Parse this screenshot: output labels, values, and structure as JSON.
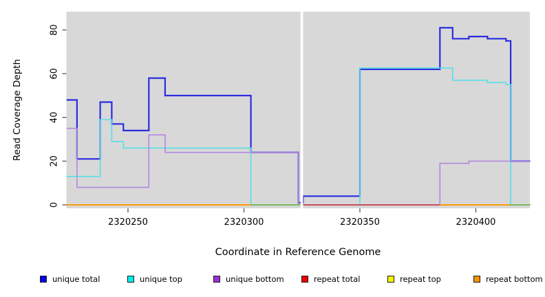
{
  "figure": {
    "xlabel": "Coordinate in Reference Genome",
    "ylabel": "Read Coverage Depth"
  },
  "chart_data": {
    "type": "line",
    "subtype": "step",
    "title": "",
    "xlabel": "Coordinate in Reference Genome",
    "ylabel": "Read Coverage Depth",
    "xlim": [
      2320223.5,
      2320423.5
    ],
    "ylim": [
      0,
      84
    ],
    "x_ticks": [
      2320250,
      2320300,
      2320350,
      2320400
    ],
    "y_ticks": [
      0,
      20,
      40,
      60,
      80
    ],
    "grid": false,
    "legend_position": "bottom",
    "plot_background": "#d8d8d8",
    "gap_region": {
      "from": 2320324.4,
      "to": 2320325.5,
      "color": "#ffffff"
    },
    "series": [
      {
        "name": "unique total",
        "color": "#2b2be0",
        "legend_color": "#0000ee",
        "width": 2.2,
        "steps": [
          [
            2320223.5,
            48
          ],
          [
            2320228,
            21
          ],
          [
            2320238,
            47
          ],
          [
            2320243,
            37
          ],
          [
            2320248,
            34
          ],
          [
            2320259,
            58
          ],
          [
            2320266,
            50
          ],
          [
            2320303,
            24
          ],
          [
            2320323.5,
            1
          ],
          [
            2320325.5,
            4
          ],
          [
            2320350,
            62
          ],
          [
            2320384.5,
            81
          ],
          [
            2320390,
            76
          ],
          [
            2320397,
            77
          ],
          [
            2320405,
            76
          ],
          [
            2320413,
            75
          ],
          [
            2320415,
            20
          ]
        ]
      },
      {
        "name": "unique top",
        "color": "#55dfe8",
        "legend_color": "#00eeee",
        "width": 1.6,
        "steps": [
          [
            2320223.5,
            13
          ],
          [
            2320238,
            39
          ],
          [
            2320243,
            29
          ],
          [
            2320248,
            26
          ],
          [
            2320303,
            0
          ],
          [
            2320350,
            62.6
          ],
          [
            2320390,
            57
          ],
          [
            2320405,
            56
          ],
          [
            2320413,
            55
          ],
          [
            2320415,
            0
          ]
        ]
      },
      {
        "name": "unique bottom",
        "color": "#b287de",
        "legend_color": "#9a30d8",
        "width": 1.6,
        "steps": [
          [
            2320223.5,
            35
          ],
          [
            2320228,
            8
          ],
          [
            2320259,
            32
          ],
          [
            2320266,
            24
          ],
          [
            2320323.5,
            0
          ],
          [
            2320384.5,
            19
          ],
          [
            2320397,
            20
          ]
        ]
      },
      {
        "name": "repeat total",
        "color": "#cc2222",
        "legend_color": "#ee0000",
        "width": 1.6,
        "steps": [
          [
            2320223.5,
            0
          ]
        ]
      },
      {
        "name": "repeat top",
        "color": "#f0f000",
        "legend_color": "#f5f500",
        "width": 1.6,
        "steps": [
          [
            2320223.5,
            0
          ]
        ]
      },
      {
        "name": "repeat bottom",
        "color": "#ff9500",
        "legend_color": "#f59300",
        "width": 1.8,
        "steps": [
          [
            2320223.5,
            0
          ]
        ]
      }
    ],
    "baseline_overlays": [
      {
        "color": "#63be6e",
        "from": 2320303.0,
        "to": 2320324.4
      },
      {
        "color": "#c4416b",
        "from": 2320325.5,
        "to": 2320384.3
      },
      {
        "color": "#63be6e",
        "from": 2320414.6,
        "to": 2320423.5
      }
    ]
  },
  "legend": {
    "items": [
      "unique total",
      "unique top",
      "unique bottom",
      "repeat total",
      "repeat top",
      "repeat bottom"
    ]
  }
}
